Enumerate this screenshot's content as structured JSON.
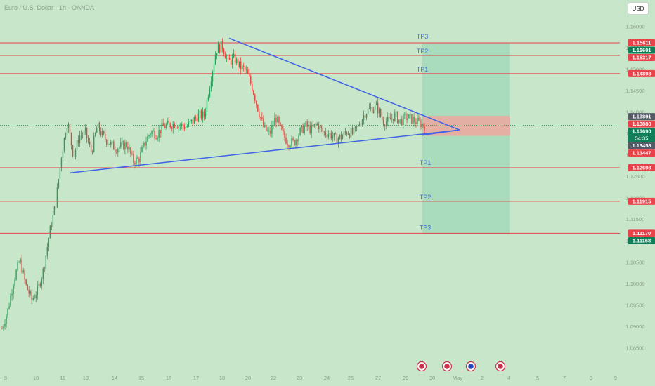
{
  "header": {
    "symbol_title": "Euro / U.S. Dollar · 1h · OANDA",
    "currency_button": "USD"
  },
  "colors": {
    "background": "#c8e6c9",
    "bull_candle": "#2e9e5b",
    "bear_candle": "#e0483f",
    "level_line": "#e8434a",
    "trendline": "#3e63e6",
    "target_zone": "#9fd8b8",
    "stop_zone": "#e9a8a0",
    "tp_label": "#3e70e6",
    "axis_text": "#8aa08b"
  },
  "chart_data": {
    "type": "candlestick",
    "title": "",
    "xlabel": "",
    "ylabel": "",
    "ylim": [
      1.081,
      1.1625
    ],
    "x_ticks": [
      "9",
      "10",
      "11",
      "13",
      "14",
      "15",
      "16",
      "17",
      "18",
      "20",
      "22",
      "23",
      "24",
      "25",
      "27",
      "29",
      "30",
      "May",
      "2",
      "4",
      "5",
      "7",
      "8",
      "9",
      "11"
    ],
    "y_ticks": [
      "1.16000",
      "1.15500",
      "1.15000",
      "1.14500",
      "1.14000",
      "1.13500",
      "1.13000",
      "1.12500",
      "1.12000",
      "1.11500",
      "1.11000",
      "1.10500",
      "1.10000",
      "1.09500",
      "1.09000",
      "1.08500"
    ],
    "price_series": {
      "name": "EURUSD",
      "x_ticks_index": [
        0,
        6,
        12,
        18,
        24,
        30,
        36,
        42,
        48,
        54,
        60,
        66,
        72,
        78,
        84,
        90,
        96,
        102,
        108,
        114,
        120,
        126,
        132,
        138,
        144,
        150,
        156,
        162,
        168,
        174,
        180,
        186,
        192,
        198,
        204,
        210,
        216,
        222,
        228,
        234,
        240,
        246,
        252,
        258,
        264,
        270,
        276,
        282,
        288,
        294,
        300,
        306,
        312,
        318,
        324,
        330,
        336,
        342,
        348,
        354,
        360,
        366,
        372,
        378,
        384,
        390,
        396,
        402,
        408,
        414,
        420,
        426,
        432,
        438,
        444,
        450,
        456,
        462,
        468,
        474,
        480,
        486,
        492,
        498,
        504,
        510,
        516,
        522,
        528,
        534,
        540,
        546,
        552,
        558,
        564,
        570,
        576,
        582,
        588,
        594,
        600
      ],
      "close": [
        1.0895,
        1.094,
        1.101,
        1.1055,
        1.0995,
        1.0962,
        1.0985,
        1.1035,
        1.112,
        1.1185,
        1.1302,
        1.138,
        1.1295,
        1.1345,
        1.1352,
        1.1305,
        1.1368,
        1.1342,
        1.1328,
        1.1315,
        1.132,
        1.1325,
        1.1285,
        1.129,
        1.1328,
        1.1355,
        1.1348,
        1.1365,
        1.137,
        1.1372,
        1.1369,
        1.1365,
        1.1378,
        1.1392,
        1.1392,
        1.1472,
        1.1545,
        1.1555,
        1.1515,
        1.1525,
        1.1505,
        1.1495,
        1.146,
        1.1408,
        1.1362,
        1.1348,
        1.1388,
        1.1352,
        1.133,
        1.1328,
        1.1352,
        1.1368,
        1.1358,
        1.1372,
        1.1352,
        1.135,
        1.1338,
        1.1342,
        1.1355,
        1.1348,
        1.137,
        1.1398,
        1.1408,
        1.1412,
        1.1378,
        1.1378,
        1.1392,
        1.1378,
        1.1388,
        1.1382,
        1.1375,
        1.1369
      ],
      "highs_note": ""
    },
    "price_levels": [
      {
        "value": 1.15611,
        "label": "1.15611",
        "tag_color": "#e8434a"
      },
      {
        "value": 1.15601,
        "label": "1.15601",
        "tag_color": "#10805a"
      },
      {
        "value": 1.15317,
        "label": "1.15317",
        "tag_color": "#e8434a"
      },
      {
        "value": 1.14893,
        "label": "1.14893",
        "tag_color": "#e8434a"
      },
      {
        "value": 1.13891,
        "label": "1.13891",
        "tag_color": "#555a66"
      },
      {
        "value": 1.1388,
        "label": "1.13880",
        "tag_color": "#e8434a"
      },
      {
        "value": 1.1369,
        "label": "1.13690",
        "tag_color": "#10805a"
      },
      {
        "value": 1.13458,
        "label": "1.13458",
        "tag_color": "#555a66"
      },
      {
        "value": 1.13447,
        "label": "1.13447",
        "tag_color": "#e8434a"
      },
      {
        "value": 1.12698,
        "label": "1.12698",
        "tag_color": "#e8434a"
      },
      {
        "value": 1.11915,
        "label": "1.11915",
        "tag_color": "#e8434a"
      },
      {
        "value": 1.1117,
        "label": "1.11170",
        "tag_color": "#e8434a"
      },
      {
        "value": 1.11168,
        "label": "1.11168",
        "tag_color": "#10805a"
      }
    ],
    "countdown": "54:35",
    "take_profit_labels_upper": [
      "TP3",
      "TP2",
      "TP1"
    ],
    "take_profit_labels_lower": [
      "TP1",
      "TP2",
      "TP3"
    ],
    "event_icons": [
      "us-flag-icon",
      "us-flag-icon",
      "eu-flag-icon",
      "us-flag-icon"
    ],
    "grid": false
  }
}
